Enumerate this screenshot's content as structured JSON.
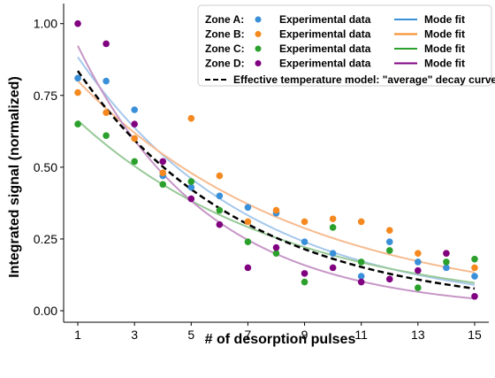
{
  "chart_data": {
    "type": "scatter",
    "xlabel": "# of desorption pulses",
    "ylabel": "Integrated signal (normalized)",
    "xlim": [
      0.5,
      15.5
    ],
    "ylim": [
      -0.04,
      1.07
    ],
    "xticks": [
      1,
      3,
      5,
      7,
      9,
      11,
      13,
      15
    ],
    "yticks": [
      0.0,
      0.25,
      0.5,
      0.75,
      1.0
    ],
    "xtick_labels": [
      "1",
      "3",
      "5",
      "7",
      "9",
      "11",
      "13",
      "15"
    ],
    "ytick_labels": [
      "0.00",
      "0.25",
      "0.50",
      "0.75",
      "1.00"
    ],
    "grid": false,
    "legend_position": "top-right",
    "series": [
      {
        "name": "Zone A:",
        "color": "#3a8fd9",
        "fit_color": "#a6c8ec",
        "marker_label": "Experimental data",
        "fit_label": "Mode fit",
        "x": [
          1,
          2,
          3,
          4,
          5,
          6,
          7,
          8,
          9,
          10,
          11,
          12,
          13,
          14,
          15
        ],
        "y": [
          0.81,
          0.8,
          0.7,
          0.47,
          0.43,
          0.4,
          0.36,
          0.34,
          0.24,
          0.2,
          0.12,
          0.24,
          0.17,
          0.15,
          0.12
        ],
        "fit": {
          "a": 1.04,
          "k": 0.163
        }
      },
      {
        "name": "Zone B:",
        "color": "#f5891f",
        "fit_color": "#f7bb8f",
        "marker_label": "Experimental data",
        "fit_label": "Mode fit",
        "x": [
          1,
          2,
          3,
          4,
          5,
          6,
          7,
          8,
          9,
          10,
          11,
          12,
          13,
          14,
          15
        ],
        "y": [
          0.76,
          0.69,
          0.6,
          0.48,
          0.67,
          0.47,
          0.31,
          0.35,
          0.31,
          0.32,
          0.31,
          0.28,
          0.2,
          0.2,
          0.15
        ],
        "fit": {
          "a": 0.91,
          "k": 0.128
        }
      },
      {
        "name": "Zone C:",
        "color": "#2ca02c",
        "fit_color": "#98c998",
        "marker_label": "Experimental data",
        "fit_label": "Mode fit",
        "x": [
          1,
          2,
          3,
          4,
          5,
          6,
          7,
          8,
          9,
          10,
          11,
          12,
          13,
          14,
          15
        ],
        "y": [
          0.65,
          0.61,
          0.52,
          0.44,
          0.45,
          0.35,
          0.24,
          0.2,
          0.1,
          0.29,
          0.17,
          0.21,
          0.08,
          0.17,
          0.18
        ],
        "fit": {
          "a": 0.76,
          "k": 0.137
        }
      },
      {
        "name": "Zone D:",
        "color": "#800080",
        "fit_color": "#c696c6",
        "marker_label": "Experimental data",
        "fit_label": "Mode fit",
        "x": [
          1,
          2,
          3,
          4,
          5,
          6,
          7,
          8,
          9,
          10,
          11,
          12,
          13,
          14,
          15
        ],
        "y": [
          1.0,
          0.93,
          0.65,
          0.52,
          0.39,
          0.3,
          0.15,
          0.22,
          0.13,
          0.15,
          0.1,
          0.11,
          0.14,
          0.2,
          0.05
        ],
        "fit": {
          "a": 1.15,
          "k": 0.22
        }
      }
    ],
    "average_model": {
      "label": "Effective temperature model: \"average\" decay curve",
      "color": "#000000",
      "style": "dashed",
      "fit": {
        "a": 0.99,
        "k": 0.17
      }
    }
  }
}
